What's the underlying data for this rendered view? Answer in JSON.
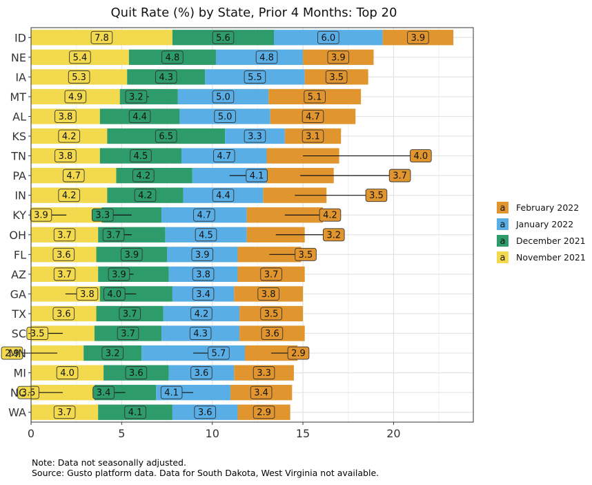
{
  "chart_data": {
    "type": "bar",
    "orientation": "horizontal",
    "stacked": true,
    "title": "Quit Rate (%) by State, Prior 4 Months: Top 20",
    "xlabel": "",
    "ylabel": "",
    "xlim": [
      0,
      24.4
    ],
    "xticks": [
      0,
      5,
      10,
      15,
      20
    ],
    "grid": true,
    "legend_position": "right",
    "categories": [
      "ID",
      "NE",
      "IA",
      "MT",
      "AL",
      "KS",
      "TN",
      "PA",
      "IN",
      "KY",
      "OH",
      "FL",
      "AZ",
      "GA",
      "TX",
      "SC",
      "MN",
      "MI",
      "NC",
      "WA"
    ],
    "series": [
      {
        "name": "November 2021",
        "color": "#f2d94e",
        "values": [
          7.8,
          5.4,
          5.3,
          4.9,
          3.8,
          4.2,
          3.8,
          4.7,
          4.2,
          3.9,
          3.7,
          3.6,
          3.7,
          3.8,
          3.6,
          3.5,
          2.9,
          4.0,
          3.5,
          3.7
        ]
      },
      {
        "name": "December 2021",
        "color": "#2e9b6b",
        "values": [
          5.6,
          4.8,
          4.3,
          3.2,
          4.4,
          6.5,
          4.5,
          4.2,
          4.2,
          3.3,
          3.7,
          3.9,
          3.9,
          4.0,
          3.7,
          3.7,
          3.2,
          3.6,
          3.4,
          4.1
        ]
      },
      {
        "name": "January 2022",
        "color": "#5aaee6",
        "values": [
          6.0,
          4.8,
          5.5,
          5.0,
          5.0,
          3.3,
          4.7,
          4.1,
          4.4,
          4.7,
          4.5,
          3.9,
          3.8,
          3.4,
          4.2,
          4.3,
          5.7,
          3.6,
          4.1,
          3.6
        ]
      },
      {
        "name": "February 2022",
        "color": "#e0952e",
        "values": [
          3.9,
          3.9,
          3.5,
          5.1,
          4.7,
          3.1,
          4.0,
          3.7,
          3.5,
          4.2,
          3.2,
          3.5,
          3.7,
          3.8,
          3.5,
          3.6,
          2.9,
          3.3,
          3.4,
          2.9
        ]
      }
    ],
    "legend_order": [
      "February 2022",
      "January 2022",
      "December 2021",
      "November 2021"
    ],
    "legend_key_glyph": "a"
  },
  "notes": [
    "Note: Data not seasonally adjusted.",
    "Source: Gusto platform data. Data for South Dakota, West Virginia not available."
  ]
}
